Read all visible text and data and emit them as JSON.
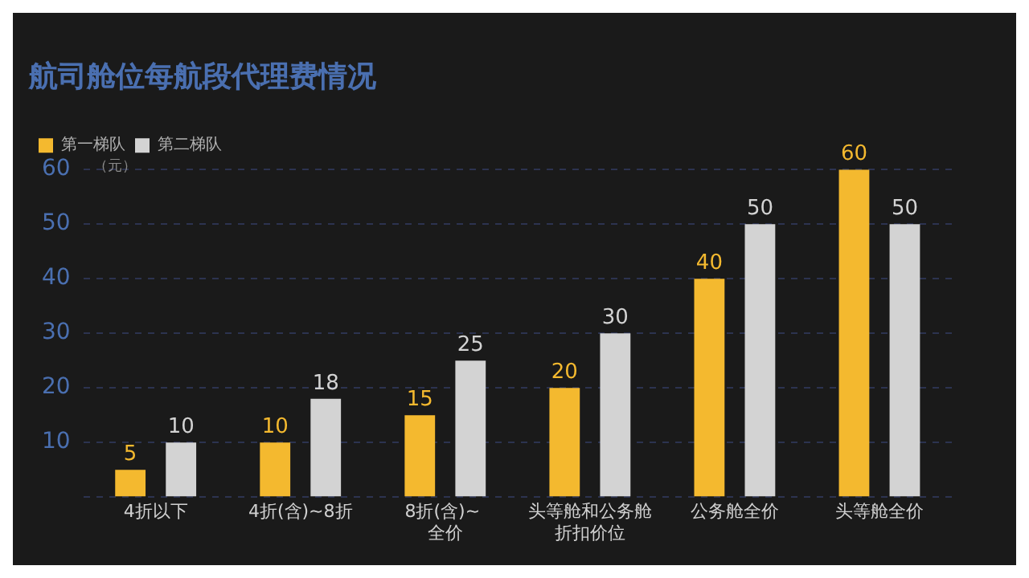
{
  "chart_data": {
    "type": "bar",
    "title": "航司舱位每航段代理费情况",
    "ylabel": "（元）",
    "categories": [
      "4折以下",
      "4折(含)~8折",
      "8折(含)~ 全价",
      "头等舱和公务舱折扣价位",
      "公务舱全价",
      "头等舱全价"
    ],
    "series": [
      {
        "name": "第一梯队",
        "color": "#f4b92f",
        "values": [
          5,
          10,
          15,
          20,
          40,
          60
        ]
      },
      {
        "name": "第二梯队",
        "color": "#d3d3d3",
        "values": [
          10,
          18,
          25,
          30,
          50,
          50
        ]
      }
    ],
    "ylim": [
      0,
      60
    ],
    "yticks": [
      {
        "value": 0,
        "label": null
      },
      10,
      20,
      30,
      40,
      50,
      60
    ],
    "grid": "y",
    "legend": "top left",
    "data_labels": true
  }
}
